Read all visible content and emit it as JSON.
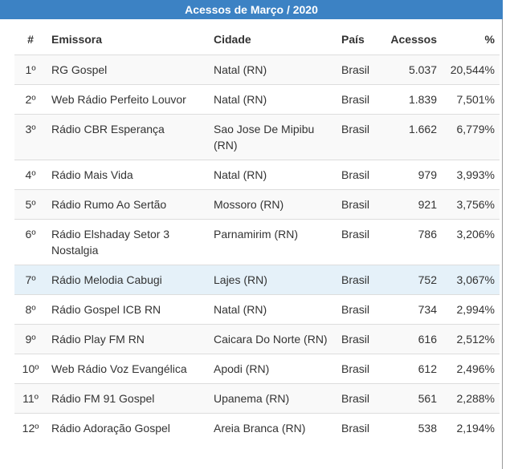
{
  "title": "Acessos de Março / 2020",
  "columns": {
    "rank": "#",
    "emissora": "Emissora",
    "cidade": "Cidade",
    "pais": "País",
    "acessos": "Acessos",
    "pct": "%"
  },
  "rows": [
    {
      "rank": "1º",
      "emissora": "RG Gospel",
      "cidade": "Natal (RN)",
      "pais": "Brasil",
      "acessos": "5.037",
      "pct": "20,544%"
    },
    {
      "rank": "2º",
      "emissora": "Web Rádio Perfeito Louvor",
      "cidade": "Natal (RN)",
      "pais": "Brasil",
      "acessos": "1.839",
      "pct": "7,501%"
    },
    {
      "rank": "3º",
      "emissora": "Rádio CBR Esperança",
      "cidade": "Sao Jose De Mipibu (RN)",
      "pais": "Brasil",
      "acessos": "1.662",
      "pct": "6,779%"
    },
    {
      "rank": "4º",
      "emissora": "Rádio Mais Vida",
      "cidade": "Natal (RN)",
      "pais": "Brasil",
      "acessos": "979",
      "pct": "3,993%"
    },
    {
      "rank": "5º",
      "emissora": "Rádio Rumo Ao Sertão",
      "cidade": "Mossoro (RN)",
      "pais": "Brasil",
      "acessos": "921",
      "pct": "3,756%"
    },
    {
      "rank": "6º",
      "emissora": "Rádio Elshaday Setor 3 Nostalgia",
      "cidade": "Parnamirim (RN)",
      "pais": "Brasil",
      "acessos": "786",
      "pct": "3,206%"
    },
    {
      "rank": "7º",
      "emissora": "Rádio Melodia Cabugi",
      "cidade": "Lajes (RN)",
      "pais": "Brasil",
      "acessos": "752",
      "pct": "3,067%"
    },
    {
      "rank": "8º",
      "emissora": "Rádio Gospel ICB RN",
      "cidade": "Natal (RN)",
      "pais": "Brasil",
      "acessos": "734",
      "pct": "2,994%"
    },
    {
      "rank": "9º",
      "emissora": "Rádio Play FM RN",
      "cidade": "Caicara Do Norte (RN)",
      "pais": "Brasil",
      "acessos": "616",
      "pct": "2,512%"
    },
    {
      "rank": "10º",
      "emissora": "Web Rádio Voz Evangélica",
      "cidade": "Apodi (RN)",
      "pais": "Brasil",
      "acessos": "612",
      "pct": "2,496%"
    },
    {
      "rank": "11º",
      "emissora": "Rádio FM 91 Gospel",
      "cidade": "Upanema (RN)",
      "pais": "Brasil",
      "acessos": "561",
      "pct": "2,288%"
    },
    {
      "rank": "12º",
      "emissora": "Rádio Adoração Gospel",
      "cidade": "Areia Branca (RN)",
      "pais": "Brasil",
      "acessos": "538",
      "pct": "2,194%"
    }
  ]
}
